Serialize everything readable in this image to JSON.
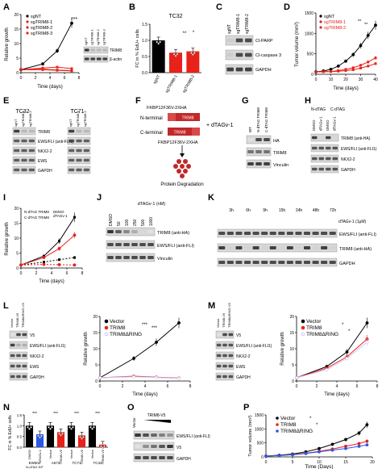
{
  "figure": {
    "panel_letters": [
      "A",
      "B",
      "C",
      "D",
      "E",
      "F",
      "G",
      "H",
      "I",
      "J",
      "K",
      "L",
      "M",
      "N",
      "O",
      "P"
    ]
  },
  "A": {
    "ylabel": "Relative growth",
    "xlabel": "Time (days)",
    "legend": [
      "sgNT",
      "sgTRIM8-1",
      "sgTRIM8-2",
      "sgTRIM8-3"
    ],
    "sig": "***",
    "blot_cols": [
      "sgNT",
      "sgTRIM8-1",
      "sgTRIM8-2",
      "sgTRIM8-3"
    ],
    "blot_rows": [
      "TRIM8",
      "β-actin"
    ]
  },
  "B": {
    "title": "TC32",
    "ylabel": "FC in % EdU+ cells",
    "sig": [
      "**",
      "*"
    ]
  },
  "C": {
    "cols": [
      "sgNT",
      "sgTRIM8-1",
      "sgTRIM8-2"
    ],
    "rows": [
      "Cl-PARP",
      "Cl-caspase 3",
      "GAPDH"
    ]
  },
  "D": {
    "ylabel": "Tumor volume (mm³)",
    "xlabel": "Time (days)",
    "legend": [
      "sgNT",
      "sgTRIM8-1",
      "sgTRIM8-2"
    ],
    "sig": [
      "**",
      "**"
    ]
  },
  "E": {
    "groups": [
      "TC32",
      "TC71"
    ],
    "cols": [
      "sgNT",
      "sgTRIM8-1",
      "sgTRIM8-2"
    ],
    "rows": [
      "TRIM8",
      "EWS/FLI (anti-FLI1)",
      "NKX2-2",
      "EWS",
      "GAPDH"
    ]
  },
  "F": {
    "top_label": "FKBP12F36V-2XHA",
    "n_term": "N-terminal",
    "c_term": "C-terminal",
    "box": "TRIM8",
    "bottom_label": "FKBP12F36V-2XHA",
    "drug": "+ dTAGv-1",
    "outcome": "Protein Degradation"
  },
  "G": {
    "cols": [
      "WT",
      "N-dTAG TRIM8",
      "C-dTAG TRIM8"
    ],
    "rows": [
      "HA",
      "TRIM8",
      "Vinculin"
    ]
  },
  "H": {
    "header": [
      "N-dTAG",
      "C-dTAG"
    ],
    "cols": [
      "DMSO",
      "dTAGv-1",
      "DMSO",
      "dTAGv-1"
    ],
    "rows": [
      "TRIM8 (anti-HA)",
      "EWS/FLI (anti-FLI1)",
      "NKX2-2",
      "GAPDH"
    ]
  },
  "I": {
    "ylabel": "Relative growth",
    "xlabel": "Time (days)",
    "legend": [
      "N-dTAG TRIM8",
      "C-dTAG TRIM8"
    ],
    "legend_cond": [
      "DMSO",
      "dTAGv-1"
    ]
  },
  "J": {
    "header": "dTAGv-1 (nM)",
    "cols": [
      "DMSO",
      "50",
      "100",
      "250",
      "500",
      "1000"
    ],
    "rows": [
      "TRIM8 (anti-HA)",
      "EWS/FLI (anti-FLI)",
      "Vinculin"
    ]
  },
  "K": {
    "times": [
      "3h",
      "6h",
      "9h",
      "15h",
      "24h",
      "48h",
      "72h"
    ],
    "treat_label": "dTAGv-1 (1μM)",
    "rows": [
      "EWS/FLI (anti-FLI)",
      "TRIM8 (anti-HA)",
      "GAPDH"
    ]
  },
  "L": {
    "blot_cols": [
      "Vector",
      "TRIM8-V5",
      "TRIM8ΔRING-V5"
    ],
    "blot_rows": [
      "V5",
      "EWS/FLI (anti-FLI1)",
      "NKX2-2",
      "EWS",
      "GAPDH"
    ],
    "ylabel": "Relative growth",
    "xlabel": "Time (days)",
    "legend": [
      "Vector",
      "TRIM8",
      "TRIM8ΔRING"
    ],
    "sig": [
      "***",
      "***"
    ]
  },
  "M": {
    "blot_cols": [
      "Vector",
      "TRIM8-V5",
      "TRIM8ΔRING-V5"
    ],
    "blot_rows": [
      "V5",
      "EWS/FLI (anti-FLI1)",
      "NKX2-2",
      "EWS",
      "GAPDH"
    ],
    "ylabel": "Relative growth",
    "xlabel": "Time (days)",
    "legend": [
      "Vector",
      "TRIM8",
      "TRIM8ΔRING"
    ],
    "sig": [
      "*",
      "*"
    ]
  },
  "N": {
    "ylabel": "FC in % EdU+ cells",
    "sig": [
      "***",
      "***",
      "***",
      "***"
    ],
    "bar_labels": [
      "DMSO",
      "dTAGv-1",
      "Vector",
      "TRIM8-V5",
      "Vector",
      "TRIM8-V5",
      "Vector",
      "TRIM8-V5"
    ],
    "group_labels": [
      "EW502 N-dTAG E/F",
      "A673",
      "TC71",
      "TC32"
    ]
  },
  "O": {
    "header": "TRIM8-V5",
    "cols": [
      "Vector"
    ],
    "rows": [
      "EWS/FLI (anti-FLI)",
      "V5",
      "GAPDH"
    ]
  },
  "P": {
    "ylabel": "Tumor volume (mm³)",
    "xlabel": "Time (Days)",
    "legend": [
      "Vector",
      "TRIM8",
      "TRIM8ΔRING"
    ],
    "sig": [
      "*",
      "*"
    ]
  },
  "chart_data": [
    {
      "panel": "A",
      "type": "line",
      "x": [
        0,
        3,
        5,
        7
      ],
      "xlim": [
        0,
        8
      ],
      "ylim": [
        0,
        20
      ],
      "yticks": [
        0,
        5,
        10,
        15,
        20
      ],
      "xticks": [
        0,
        2,
        4,
        6,
        8
      ],
      "series": [
        {
          "name": "sgNT",
          "values": [
            1,
            3,
            7.5,
            17
          ],
          "color": "#000000"
        },
        {
          "name": "sgTRIM8-1",
          "values": [
            1,
            1.6,
            1.9,
            1.4
          ],
          "color": "#e8221a"
        },
        {
          "name": "sgTRIM8-2",
          "values": [
            1,
            1.2,
            0.9,
            0.7
          ],
          "color": "#e8221a"
        },
        {
          "name": "sgTRIM8-3",
          "values": [
            1,
            1.0,
            0.8,
            0.6
          ],
          "color": "#e8221a"
        }
      ]
    },
    {
      "panel": "B",
      "type": "bar",
      "categories": [
        "sgNT",
        "sgTRIM8-1",
        "sgTRIM8-2"
      ],
      "values": [
        1.0,
        0.62,
        0.66
      ],
      "ylim": [
        0,
        1.5
      ],
      "yticks": [
        0.0,
        0.5,
        1.0,
        1.5
      ],
      "colors": [
        "#000000",
        "#e8221a",
        "#e8221a"
      ]
    },
    {
      "panel": "D",
      "type": "line",
      "x": [
        0,
        5,
        10,
        15,
        20,
        25,
        30,
        35,
        40
      ],
      "xlim": [
        0,
        40
      ],
      "ylim": [
        0,
        1500
      ],
      "yticks": [
        0,
        500,
        1000,
        1500
      ],
      "xticks": [
        0,
        10,
        20,
        30,
        40
      ],
      "series": [
        {
          "name": "sgNT",
          "values": [
            60,
            80,
            120,
            200,
            320,
            480,
            700,
            950,
            1200
          ],
          "color": "#000000"
        },
        {
          "name": "sgTRIM8-1",
          "values": [
            60,
            65,
            70,
            90,
            120,
            160,
            220,
            300,
            400
          ],
          "color": "#e8221a"
        },
        {
          "name": "sgTRIM8-2",
          "values": [
            60,
            62,
            65,
            75,
            90,
            110,
            150,
            200,
            260
          ],
          "color": "#e8221a"
        }
      ]
    },
    {
      "panel": "I",
      "type": "line",
      "x": [
        0,
        3,
        5,
        7
      ],
      "xlim": [
        0,
        8
      ],
      "ylim": [
        0,
        20
      ],
      "yticks": [
        0,
        5,
        10,
        15,
        20
      ],
      "xticks": [
        0,
        2,
        4,
        6,
        8
      ],
      "series": [
        {
          "name": "N-dTAG TRIM8 DMSO",
          "values": [
            1,
            4,
            9,
            17
          ],
          "color": "#000000"
        },
        {
          "name": "N-dTAG TRIM8 dTAGv-1",
          "values": [
            1,
            2,
            2.8,
            3.5
          ],
          "color": "#000000"
        },
        {
          "name": "C-dTAG TRIM8 DMSO",
          "values": [
            1,
            3.5,
            6.5,
            11
          ],
          "color": "#e8221a"
        },
        {
          "name": "C-dTAG TRIM8 dTAGv-1",
          "values": [
            1,
            1.2,
            1.1,
            1.0
          ],
          "color": "#e8221a"
        }
      ]
    },
    {
      "panel": "L",
      "type": "line",
      "x": [
        0,
        3,
        5,
        7
      ],
      "xlim": [
        0,
        8
      ],
      "ylim": [
        0,
        20
      ],
      "yticks": [
        0,
        5,
        10,
        15,
        20
      ],
      "xticks": [
        0,
        2,
        4,
        6,
        8
      ],
      "series": [
        {
          "name": "Vector",
          "values": [
            1,
            7,
            12,
            18
          ],
          "color": "#000000"
        },
        {
          "name": "TRIM8",
          "values": [
            1,
            1.5,
            1.2,
            0.9
          ],
          "color": "#e8221a"
        },
        {
          "name": "TRIM8ΔRING",
          "values": [
            1,
            1.3,
            1.1,
            0.8
          ],
          "color": "#c8c8ff"
        }
      ]
    },
    {
      "panel": "M",
      "type": "line",
      "x": [
        0,
        3,
        5,
        7
      ],
      "xlim": [
        0,
        8
      ],
      "ylim": [
        0,
        20
      ],
      "yticks": [
        0,
        5,
        10,
        15,
        20
      ],
      "xticks": [
        0,
        2,
        4,
        6,
        8
      ],
      "series": [
        {
          "name": "Vector",
          "values": [
            1,
            4.5,
            9,
            18
          ],
          "color": "#000000"
        },
        {
          "name": "TRIM8",
          "values": [
            1,
            4,
            7.5,
            13
          ],
          "color": "#e8221a"
        },
        {
          "name": "TRIM8ΔRING",
          "values": [
            1,
            3.5,
            7,
            12
          ],
          "color": "#c8c8ff"
        }
      ]
    },
    {
      "panel": "N",
      "type": "bar",
      "categories": [
        "DMSO",
        "dTAGv-1",
        "Vector",
        "TRIM8-V5",
        "Vector",
        "TRIM8-V5",
        "Vector",
        "TRIM8-V5"
      ],
      "values": [
        1.0,
        0.6,
        1.0,
        0.7,
        1.0,
        0.55,
        1.0,
        0.12
      ],
      "ylim": [
        0,
        1.5
      ],
      "yticks": [
        0.0,
        0.5,
        1.0,
        1.5
      ],
      "colors": [
        "#000000",
        "#2a58e8",
        "#000000",
        "#e8221a",
        "#000000",
        "#e8221a",
        "#000000",
        "#e8221a"
      ]
    },
    {
      "panel": "P",
      "type": "line",
      "x": [
        0,
        2.5,
        5,
        7.5,
        10,
        12.5,
        15,
        17.5,
        19
      ],
      "xlim": [
        0,
        20
      ],
      "ylim": [
        0,
        1500
      ],
      "yticks": [
        0,
        500,
        1000,
        1500
      ],
      "xticks": [
        0,
        5,
        10,
        15,
        20
      ],
      "series": [
        {
          "name": "Vector",
          "values": [
            30,
            60,
            100,
            180,
            300,
            450,
            620,
            850,
            1150
          ],
          "color": "#000000"
        },
        {
          "name": "TRIM8",
          "values": [
            30,
            50,
            80,
            130,
            200,
            280,
            380,
            480,
            560
          ],
          "color": "#e8221a"
        },
        {
          "name": "TRIM8ΔRING",
          "values": [
            30,
            48,
            75,
            120,
            180,
            240,
            300,
            380,
            430
          ],
          "color": "#2a58e8"
        }
      ]
    }
  ]
}
